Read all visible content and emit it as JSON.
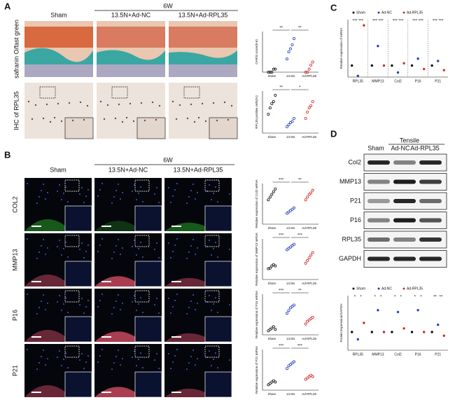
{
  "panels": {
    "A": {
      "label": "A",
      "period": "6W",
      "columns": [
        "Sham",
        "13.5N+Ad-NC",
        "13.5N+Ad-RPL35"
      ],
      "rows": [
        "safranin O/fast green",
        "IHC of RPL35"
      ],
      "colors": [
        "#111111",
        "#2340c0",
        "#d42a2a"
      ],
      "plots": [
        {
          "ylabel": "OARSI score(0-6)",
          "categories": [
            "Sham",
            "13.5N",
            "Ad-RPL35"
          ],
          "ylim": [
            0,
            4
          ],
          "groups": [
            [
              0,
              0,
              0,
              0.3,
              0.3
            ],
            [
              1.3,
              2,
              2.3,
              2.7,
              3.3
            ],
            [
              0,
              0,
              0.3,
              0.7,
              1
            ]
          ],
          "sig": [
            "**",
            "**"
          ]
        },
        {
          "ylabel": "RPL35 positive cells(%)",
          "categories": [
            "Sham",
            "13.5N",
            "Ad-RPL35"
          ],
          "ylim": [
            0,
            100
          ],
          "groups": [
            [
              45,
              60,
              70,
              75,
              90
            ],
            [
              15,
              20,
              25,
              28,
              35
            ],
            [
              35,
              50,
              60,
              65,
              75
            ]
          ],
          "sig": [
            "**",
            "*"
          ]
        }
      ]
    },
    "B": {
      "label": "B",
      "period": "6W",
      "columns": [
        "Sham",
        "13.5N+Ad-NC",
        "13.5N+Ad-RPL35"
      ],
      "rows": [
        "COL2",
        "MMP13",
        "P16",
        "P21"
      ],
      "row_colors": [
        "#2fbf2f",
        "#e02a2a",
        "#e02a2a",
        "#e02a2a"
      ],
      "colors": [
        "#111111",
        "#2340c0",
        "#d42a2a"
      ],
      "plots": [
        {
          "ylabel": "Relative expression of Col2 mRNA",
          "categories": [
            "Sham",
            "13.5N",
            "Ad-RPL35"
          ],
          "ylim": [
            0,
            1.5
          ],
          "groups": [
            [
              0.9,
              1.0,
              1.1,
              1.2,
              1.3
            ],
            [
              0.4,
              0.45,
              0.5,
              0.55,
              0.6
            ],
            [
              0.9,
              1.0,
              1.1,
              1.15,
              1.25
            ]
          ],
          "sig": [
            "***",
            "**"
          ]
        },
        {
          "ylabel": "Relative expression of MMP13 mRNA",
          "categories": [
            "Sham",
            "13.5N",
            "Ad-RPL35"
          ],
          "ylim": [
            0,
            1.5
          ],
          "groups": [
            [
              0.4,
              0.42,
              0.5,
              0.55,
              0.5
            ],
            [
              1.1,
              1.15,
              1.2,
              1.25,
              1.3
            ],
            [
              0.6,
              0.7,
              0.8,
              0.9,
              1.0
            ]
          ],
          "sig": [
            "***",
            "***"
          ]
        },
        {
          "ylabel": "Relative expression of P16 mRNA",
          "categories": [
            "Sham",
            "13.5N",
            "Ad-RPL35"
          ],
          "ylim": [
            0,
            1.5
          ],
          "groups": [
            [
              0.15,
              0.2,
              0.25,
              0.3,
              0.2
            ],
            [
              0.8,
              0.9,
              1.0,
              1.05,
              1.1
            ],
            [
              0.4,
              0.5,
              0.55,
              0.6,
              0.65
            ]
          ],
          "sig": [
            "***",
            "**"
          ]
        },
        {
          "ylabel": "Relative expression of P21 mRNA",
          "categories": [
            "Sham",
            "13.5N",
            "Ad-RPL35"
          ],
          "ylim": [
            0,
            1.5
          ],
          "groups": [
            [
              0.2,
              0.25,
              0.3,
              0.35,
              0.3
            ],
            [
              0.8,
              0.9,
              0.95,
              1.0,
              1.05
            ],
            [
              0.4,
              0.45,
              0.5,
              0.55,
              0.5
            ]
          ],
          "sig": [
            "***",
            "***"
          ]
        }
      ]
    },
    "C": {
      "label": "C",
      "chart": {
        "ylabel": "Relative expression of mRNA",
        "ylim": [
          0,
          5
        ],
        "categories": [
          "RPL35",
          "MMP13",
          "Col2",
          "P16",
          "P21"
        ],
        "series": [
          {
            "name": "Sham",
            "color": "#111111",
            "values": [
              1,
              1,
              1,
              1,
              1
            ]
          },
          {
            "name": "Ad-NC",
            "color": "#2340c0",
            "values": [
              0.1,
              2.7,
              0.4,
              1.6,
              1.4
            ]
          },
          {
            "name": "Ad-RPL35",
            "color": "#d42a2a",
            "values": [
              4.5,
              1,
              1.2,
              0.7,
              0.6
            ]
          }
        ],
        "sig": [
          [
            "***",
            "***"
          ],
          [
            "***",
            "***"
          ],
          [
            "***",
            "***"
          ],
          [
            "***",
            "***"
          ],
          [
            "***",
            "***"
          ]
        ]
      }
    },
    "D": {
      "label": "D",
      "group": "Tensile",
      "columns": [
        "Sham",
        "Ad-NC",
        "Ad-RPL35"
      ],
      "blots": [
        "Col2",
        "MMP13",
        "P21",
        "P16",
        "RPL35",
        "GAPDH"
      ],
      "chart": {
        "ylabel": "Protein Expression/GAPDH",
        "ylim": [
          0,
          3
        ],
        "categories": [
          "RPL35",
          "MMP13",
          "Col2",
          "P16",
          "P21"
        ],
        "series": [
          {
            "name": "Sham",
            "color": "#111111",
            "values": [
              1,
              1,
              1,
              1,
              1
            ]
          },
          {
            "name": "Ad-NC",
            "color": "#2340c0",
            "values": [
              0.6,
              2.2,
              2.1,
              2.2,
              1.4
            ]
          },
          {
            "name": "Ad-RPL35",
            "color": "#d42a2a",
            "values": [
              1.5,
              1,
              1.2,
              1,
              0.8
            ]
          }
        ],
        "sig": [
          [
            "*",
            "*"
          ],
          [
            "*",
            "*"
          ],
          [
            "*",
            "*"
          ],
          [
            "*",
            "*"
          ],
          [
            "**",
            "**"
          ]
        ]
      }
    }
  }
}
